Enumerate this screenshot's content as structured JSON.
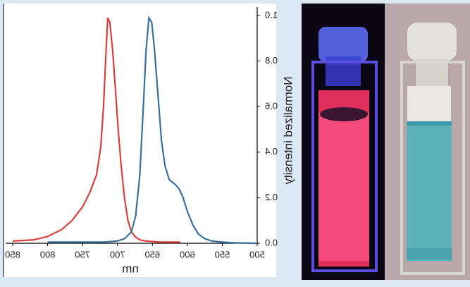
{
  "chart_data": {
    "type": "line",
    "xlabel": "nm",
    "ylabel": "Normalized intensity",
    "xlim": [
      850,
      500
    ],
    "xticks": [
      850,
      800,
      750,
      700,
      650,
      600,
      550,
      500
    ],
    "ylim": [
      0,
      1
    ],
    "yticks": [
      {
        "value": 0,
        "label": "0.0"
      },
      0.2,
      0.4,
      0.6,
      0.8,
      {
        "value": 1,
        "label": "1.0"
      }
    ],
    "series": [
      {
        "color": "#d9403b",
        "x": [
          850,
          820,
          800,
          780,
          765,
          750,
          740,
          730,
          724,
          720,
          717,
          714,
          711,
          707,
          703,
          699,
          695,
          690,
          685,
          680,
          675,
          668,
          660,
          640,
          620,
          610
        ],
        "values": [
          0.01,
          0.015,
          0.03,
          0.06,
          0.1,
          0.16,
          0.22,
          0.3,
          0.42,
          0.6,
          0.8,
          0.99,
          0.97,
          0.85,
          0.68,
          0.5,
          0.35,
          0.2,
          0.1,
          0.05,
          0.03,
          0.015,
          0.01,
          0.005,
          0.005,
          0.005
        ]
      },
      {
        "color": "#3a6fa0",
        "x": [
          800,
          760,
          720,
          700,
          690,
          680,
          674,
          668,
          663,
          659,
          655,
          651,
          647,
          642,
          637,
          632,
          626,
          618,
          612,
          606,
          600,
          592,
          584,
          575,
          565,
          550,
          530,
          500
        ],
        "values": [
          0.005,
          0.005,
          0.005,
          0.01,
          0.02,
          0.05,
          0.12,
          0.3,
          0.6,
          0.85,
          0.99,
          0.97,
          0.85,
          0.65,
          0.45,
          0.34,
          0.28,
          0.26,
          0.24,
          0.2,
          0.14,
          0.08,
          0.04,
          0.02,
          0.01,
          0.005,
          0.002,
          0.0
        ]
      }
    ]
  }
}
